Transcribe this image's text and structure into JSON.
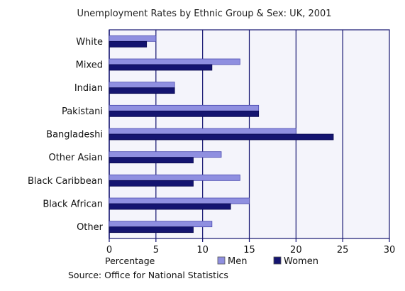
{
  "chart_data": {
    "type": "bar",
    "orientation": "horizontal",
    "title": "Unemployment Rates by Ethnic Group & Sex: UK, 2001",
    "xlabel": "Percentage",
    "ylabel": "",
    "source": "Source: Office for National Statistics",
    "categories": [
      "White",
      "Mixed",
      "Indian",
      "Pakistani",
      "Bangladeshi",
      "Other Asian",
      "Black Caribbean",
      "Black African",
      "Other"
    ],
    "series": [
      {
        "name": "Men",
        "values": [
          5,
          14,
          7,
          16,
          20,
          12,
          14,
          15,
          11
        ]
      },
      {
        "name": "Women",
        "values": [
          4,
          11,
          7,
          16,
          24,
          9,
          9,
          13,
          9
        ]
      }
    ],
    "xlim": [
      0,
      30
    ],
    "xticks": [
      0,
      5,
      10,
      15,
      20,
      25,
      30
    ],
    "grid": true,
    "legend_position": "bottom"
  },
  "colors": {
    "men": "#8f8fe0",
    "women": "#141470",
    "plot_bg": "#f4f4fb",
    "grid": "#141470"
  }
}
